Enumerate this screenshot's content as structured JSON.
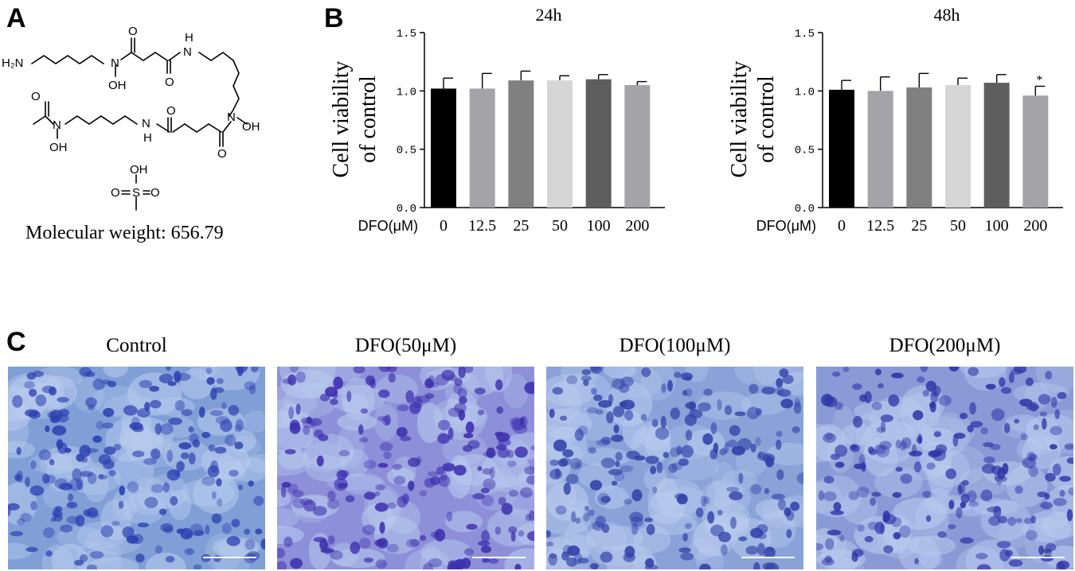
{
  "panels": {
    "a": "A",
    "b": "B",
    "c": "C"
  },
  "structure": {
    "atoms": {
      "h2n": "H₂N",
      "n1": "N",
      "oh1": "OH",
      "o1": "O",
      "nh1": "N",
      "h1": "H",
      "o2": "O",
      "o3": "O",
      "n2": "N",
      "oh2": "OH",
      "nh2": "N",
      "h2": "H",
      "o4": "O",
      "o5": "O",
      "n3": "N",
      "oh3": "OH",
      "s_oh": "OH",
      "s_o1": "O",
      "s_s": "S",
      "s_o2": "O"
    },
    "molecular_weight": "Molecular weight: 656.79"
  },
  "chart_data": [
    {
      "type": "bar",
      "title": "24h",
      "ylabel": "Cell viability of control",
      "ylabel_lines": [
        "Cell viability",
        "of control"
      ],
      "xlabel": "DFO(μM)",
      "categories": [
        "0",
        "12.5",
        "25",
        "50",
        "100",
        "200"
      ],
      "values": [
        1.02,
        1.02,
        1.09,
        1.09,
        1.1,
        1.05
      ],
      "errors": [
        0.09,
        0.13,
        0.08,
        0.04,
        0.04,
        0.03
      ],
      "annotations": [
        "",
        "",
        "",
        "",
        "",
        ""
      ],
      "yticks": [
        "0.0",
        "0.5",
        "1.0",
        "1.5"
      ],
      "ylim": [
        0,
        1.5
      ],
      "bar_colors": [
        "#000000",
        "#a3a3a8",
        "#808080",
        "#d6d6d6",
        "#5e5e5e",
        "#a3a3a8"
      ]
    },
    {
      "type": "bar",
      "title": "48h",
      "ylabel": "Cell viability of control",
      "ylabel_lines": [
        "Cell viability",
        "of control"
      ],
      "xlabel": "DFO(μM)",
      "categories": [
        "0",
        "12.5",
        "25",
        "50",
        "100",
        "200"
      ],
      "values": [
        1.01,
        1.0,
        1.03,
        1.05,
        1.07,
        0.96
      ],
      "errors": [
        0.08,
        0.12,
        0.12,
        0.06,
        0.07,
        0.08
      ],
      "annotations": [
        "",
        "",
        "",
        "",
        "",
        "*"
      ],
      "yticks": [
        "0.0",
        "0.5",
        "1.0",
        "1.5"
      ],
      "ylim": [
        0,
        1.5
      ],
      "bar_colors": [
        "#000000",
        "#a3a3a8",
        "#808080",
        "#d6d6d6",
        "#5e5e5e",
        "#a3a3a8"
      ]
    }
  ],
  "micrographs": [
    {
      "label": "Control",
      "tint": "#7f9fd6",
      "cell": "#2b3fb0"
    },
    {
      "label": "DFO(50μM)",
      "tint": "#8d90d8",
      "cell": "#3d2fae"
    },
    {
      "label": "DFO(100μM)",
      "tint": "#8aa2d8",
      "cell": "#3040a8"
    },
    {
      "label": "DFO(200μM)",
      "tint": "#8a9ad6",
      "cell": "#2e34a8"
    }
  ]
}
